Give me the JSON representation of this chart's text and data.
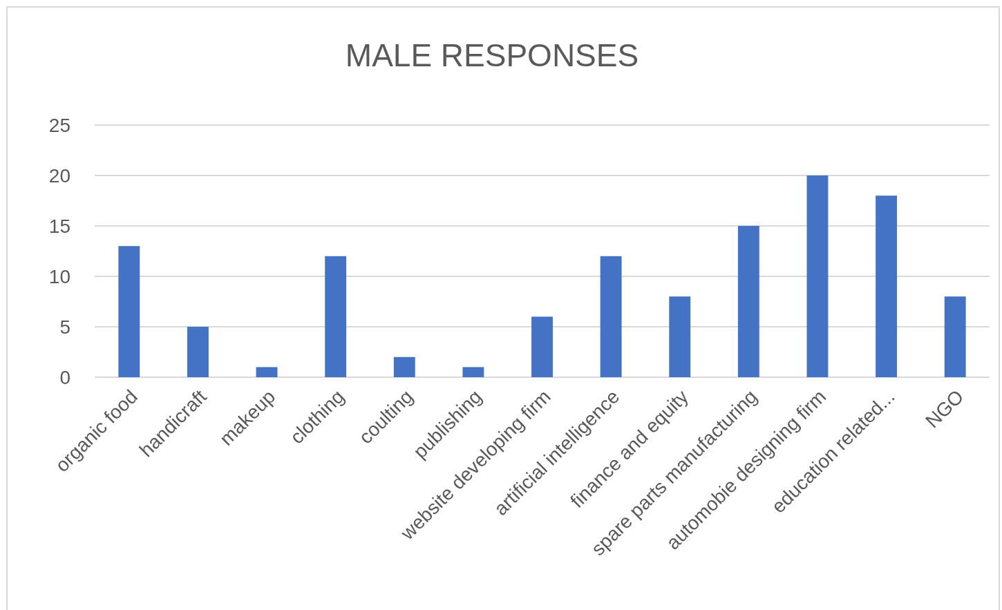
{
  "chart_data": {
    "type": "bar",
    "title": "MALE RESPONSES",
    "categories": [
      "organic food",
      "handicraft",
      "makeup",
      "clothing",
      "coulting",
      "publishing",
      "website developing firm",
      "artificial intelligence",
      "finance and equity",
      "spare parts manufacturing",
      "automobie designing firm",
      "education related...",
      "NGO"
    ],
    "values": [
      13,
      5,
      1,
      12,
      2,
      1,
      6,
      12,
      8,
      15,
      20,
      18,
      8
    ],
    "color": "#4472c4",
    "ylim": [
      0,
      25
    ],
    "yticks": [
      0,
      5,
      10,
      15,
      20,
      25
    ],
    "grid": "y"
  }
}
